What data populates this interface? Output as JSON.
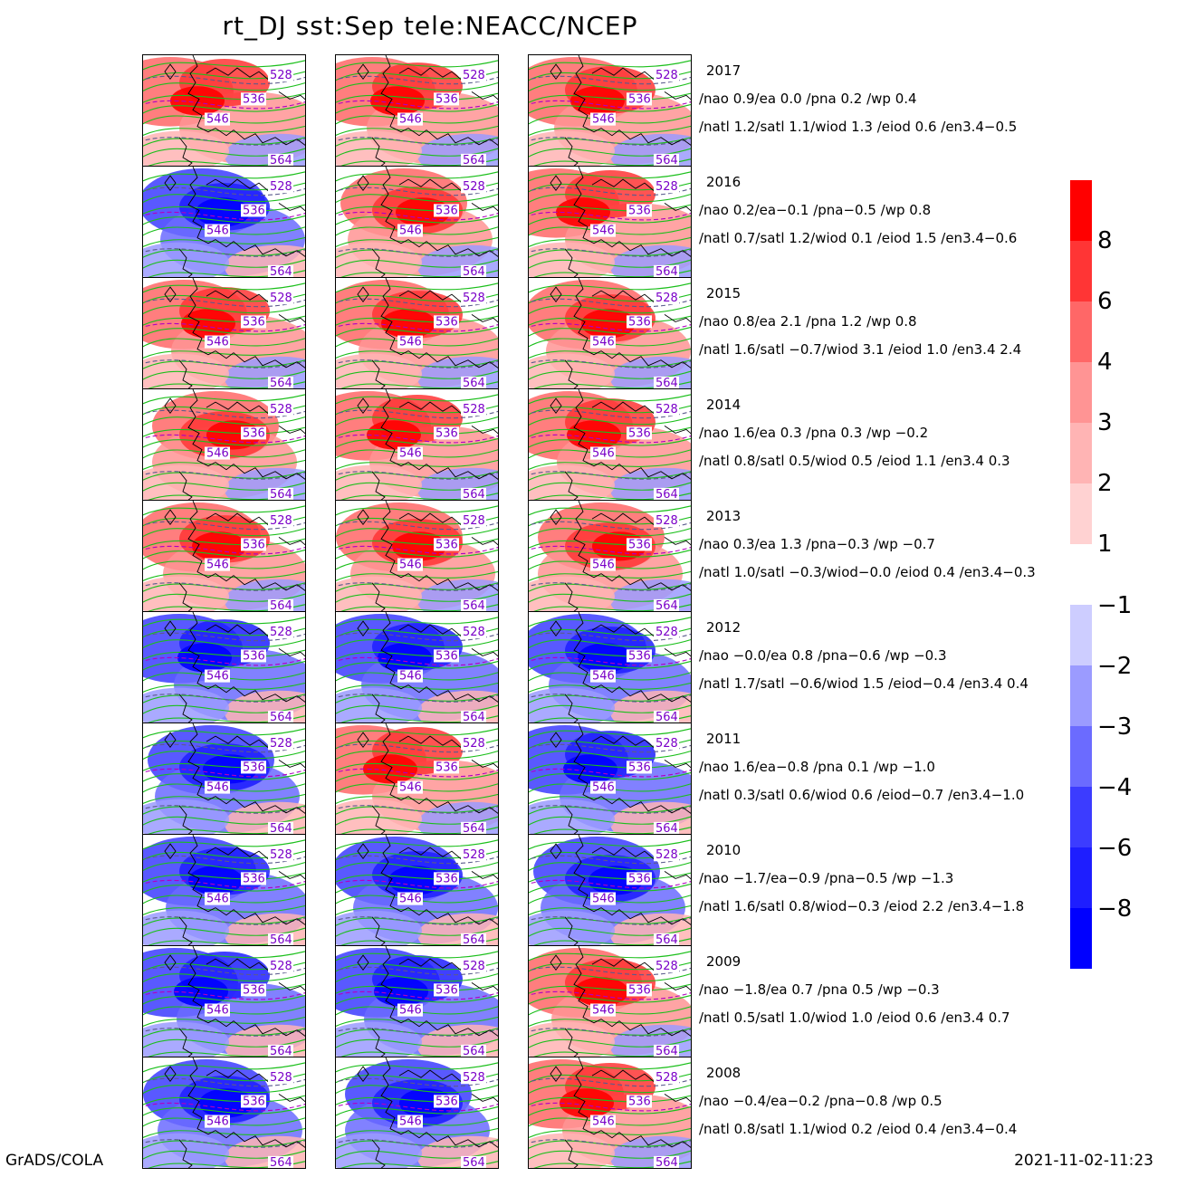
{
  "title": "rt_DJ  sst:Sep  tele:NEACC/NCEP",
  "footer": {
    "left": "GrADS/COLA",
    "right": "2021-11-02-11:23"
  },
  "contour_labels": [
    "528",
    "536",
    "546",
    "564"
  ],
  "years": [
    {
      "year": "2017",
      "line1": "/nao  0.9/ea 0.0 /pna 0.2 /wp  0.4",
      "line2": "/natl  1.2/satl  1.1/wiod 1.3 /eiod 0.6 /en3.4−0.5"
    },
    {
      "year": "2016",
      "line1": "/nao  0.2/ea−0.1 /pna−0.5 /wp  0.8",
      "line2": "/natl  0.7/satl  1.2/wiod 0.1 /eiod 1.5 /en3.4−0.6"
    },
    {
      "year": "2015",
      "line1": "/nao  0.8/ea 2.1 /pna 1.2 /wp  0.8",
      "line2": "/natl  1.6/satl −0.7/wiod 3.1 /eiod 1.0 /en3.4 2.4"
    },
    {
      "year": "2014",
      "line1": "/nao  1.6/ea 0.3 /pna 0.3 /wp −0.2",
      "line2": "/natl  0.8/satl  0.5/wiod 0.5 /eiod 1.1 /en3.4 0.3"
    },
    {
      "year": "2013",
      "line1": "/nao  0.3/ea 1.3 /pna−0.3 /wp −0.7",
      "line2": "/natl  1.0/satl −0.3/wiod−0.0 /eiod 0.4 /en3.4−0.3"
    },
    {
      "year": "2012",
      "line1": "/nao −0.0/ea 0.8 /pna−0.6 /wp −0.3",
      "line2": "/natl  1.7/satl −0.6/wiod 1.5 /eiod−0.4 /en3.4 0.4"
    },
    {
      "year": "2011",
      "line1": "/nao  1.6/ea−0.8 /pna 0.1 /wp −1.0",
      "line2": "/natl  0.3/satl  0.6/wiod 0.6 /eiod−0.7 /en3.4−1.0"
    },
    {
      "year": "2010",
      "line1": "/nao −1.7/ea−0.9 /pna−0.5 /wp −1.3",
      "line2": "/natl  1.6/satl  0.8/wiod−0.3 /eiod 2.2 /en3.4−1.8"
    },
    {
      "year": "2009",
      "line1": "/nao −1.8/ea 0.7 /pna 0.5 /wp −0.3",
      "line2": "/natl  0.5/satl  1.0/wiod 1.0 /eiod 0.6 /en3.4 0.7"
    },
    {
      "year": "2008",
      "line1": "/nao −0.4/ea−0.2 /pna−0.8 /wp  0.5",
      "line2": "/natl  0.8/satl  1.1/wiod 0.2 /eiod 0.4 /en3.4−0.4"
    }
  ],
  "colorbar": {
    "positive": {
      "labels": [
        "8",
        "6",
        "4",
        "3",
        "2",
        "1"
      ],
      "colors": [
        "#ff0000",
        "#ff3535",
        "#ff6767",
        "#ff9494",
        "#ffb4b4",
        "#ffd2d2"
      ]
    },
    "negative": {
      "labels": [
        "−1",
        "−2",
        "−3",
        "−4",
        "−6",
        "−8"
      ],
      "colors": [
        "#cdcdff",
        "#9b9bff",
        "#6b6bff",
        "#3c3cff",
        "#1e1eff",
        "#0000ff"
      ]
    }
  },
  "anomaly_signs": [
    [
      "+",
      "+",
      "+"
    ],
    [
      "-",
      "+",
      "+"
    ],
    [
      "+",
      "+",
      "+"
    ],
    [
      "+",
      "+",
      "+"
    ],
    [
      "+",
      "+",
      "+"
    ],
    [
      "-",
      "-",
      "-"
    ],
    [
      "-",
      "+",
      "-"
    ],
    [
      "-",
      "-",
      "-"
    ],
    [
      "-",
      "-",
      "+"
    ],
    [
      "-",
      "-",
      "+"
    ]
  ],
  "colors": {
    "contour_green": "#1bbf1b",
    "contour_dashed": "#5a5a8c",
    "contour_magenta": "#b000c0",
    "coast": "#000000"
  }
}
